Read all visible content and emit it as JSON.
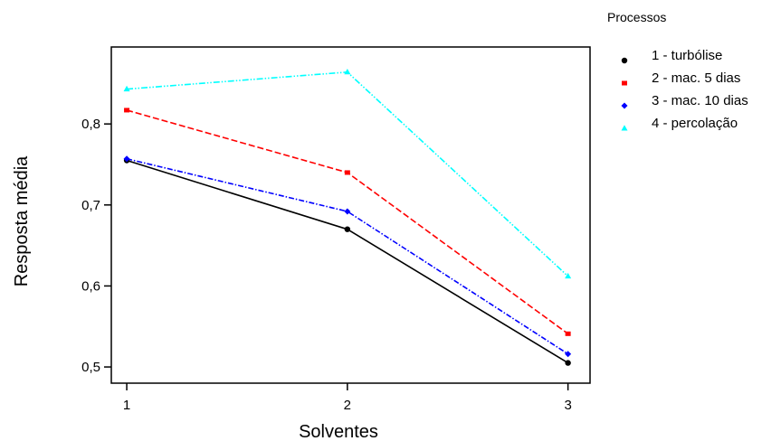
{
  "chart_data": {
    "type": "line",
    "title": "",
    "xlabel": "Solventes",
    "ylabel": "Resposta média",
    "x": [
      1,
      2,
      3
    ],
    "x_tick_labels": [
      "1",
      "2",
      "3"
    ],
    "y_ticks": [
      0.5,
      0.6,
      0.7,
      0.8
    ],
    "y_tick_labels": [
      "0,5",
      "0,6",
      "0,7",
      "0,8"
    ],
    "ylim": [
      0.48,
      0.895
    ],
    "xlim": [
      0.93,
      3.1
    ],
    "grid": false,
    "legend_title": "Processos",
    "legend_position": "right",
    "series": [
      {
        "name": "1 - turbólise",
        "values": [
          0.755,
          0.67,
          0.505
        ],
        "color": "#000000",
        "dash": "solid",
        "marker": "circle"
      },
      {
        "name": "2 - mac. 5 dias",
        "values": [
          0.817,
          0.74,
          0.541
        ],
        "color": "#ff0000",
        "dash": "dashed",
        "marker": "square"
      },
      {
        "name": "3 - mac. 10 dias",
        "values": [
          0.757,
          0.692,
          0.516
        ],
        "color": "#0000ff",
        "dash": "dashdot",
        "marker": "diamond"
      },
      {
        "name": "4 - percolação",
        "values": [
          0.843,
          0.864,
          0.612
        ],
        "color": "#00ffff",
        "dash": "dashdotdot",
        "marker": "triangle"
      }
    ]
  }
}
